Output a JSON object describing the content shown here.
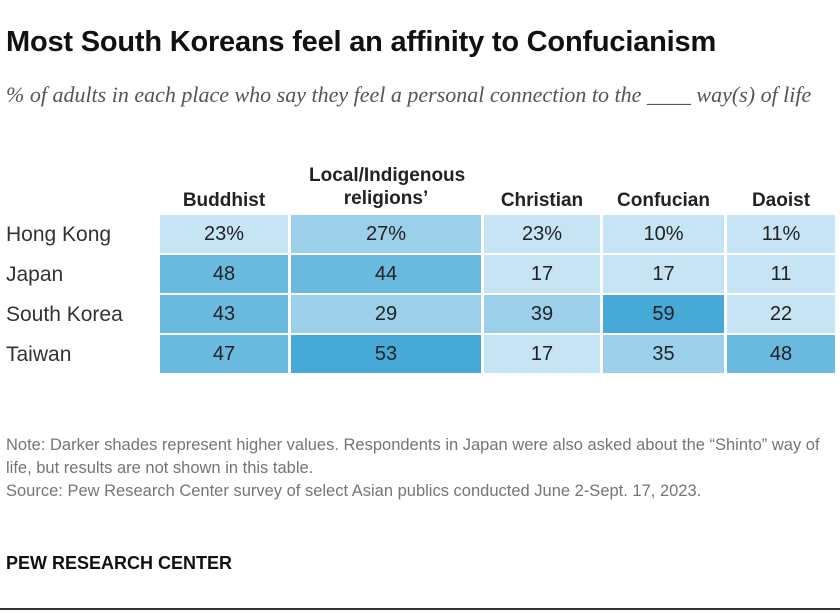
{
  "title": "Most South Koreans feel an affinity to Confucianism",
  "subtitle": "% of adults in each place who say they feel a personal connection to the ____ way(s) of life",
  "chart_data": {
    "type": "table",
    "columns": [
      "Buddhist",
      "Local/Indigenous religions’",
      "Christian",
      "Confucian",
      "Daoist"
    ],
    "rows": [
      {
        "label": "Hong Kong",
        "values": [
          23,
          27,
          23,
          10,
          11
        ],
        "display": [
          "23%",
          "27%",
          "23%",
          "10%",
          "11%"
        ]
      },
      {
        "label": "Japan",
        "values": [
          48,
          44,
          17,
          17,
          11
        ],
        "display": [
          "48",
          "44",
          "17",
          "17",
          "11"
        ]
      },
      {
        "label": "South Korea",
        "values": [
          43,
          29,
          39,
          59,
          22
        ],
        "display": [
          "43",
          "29",
          "39",
          "59",
          "22"
        ]
      },
      {
        "label": "Taiwan",
        "values": [
          47,
          53,
          17,
          35,
          48
        ],
        "display": [
          "47",
          "53",
          "17",
          "35",
          "48"
        ]
      }
    ],
    "color_scale": [
      "#c6e4f3",
      "#9ccfea",
      "#6ab9df",
      "#47a9d6"
    ]
  },
  "note": "Note: Darker shades represent higher values. Respondents in Japan were also asked about the “Shinto” way of life, but results are not shown in this table.",
  "source": "Source: Pew Research Center survey of select Asian publics conducted June 2-Sept. 17, 2023.",
  "brand": "PEW RESEARCH CENTER"
}
